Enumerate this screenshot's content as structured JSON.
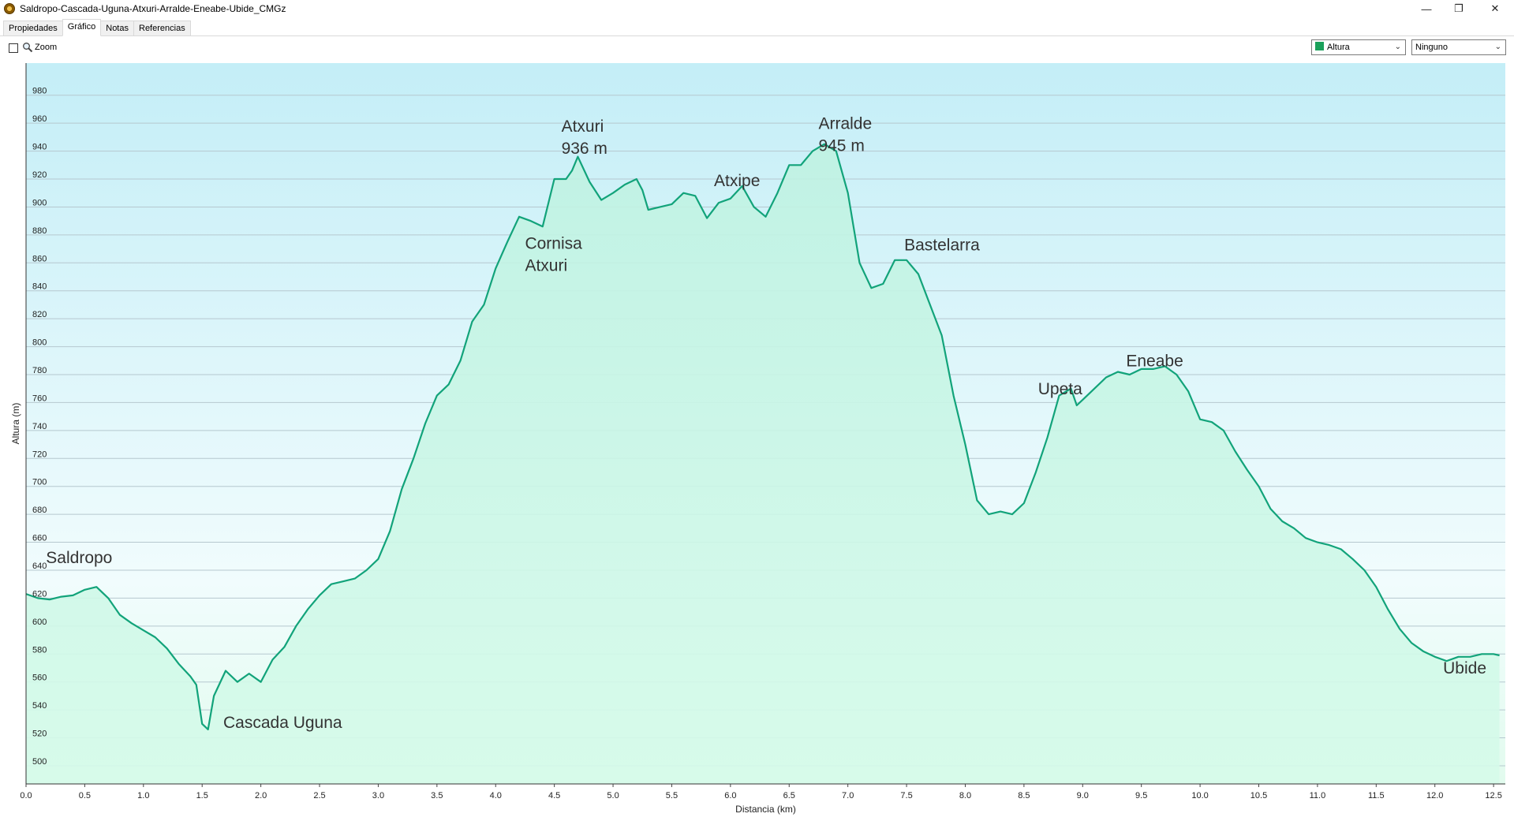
{
  "window": {
    "title": "Saldropo-Cascada-Uguna-Atxuri-Arralde-Eneabe-Ubide_CMGz",
    "minimize_glyph": "—",
    "restore_glyph": "❐",
    "close_glyph": "✕"
  },
  "tabs": [
    {
      "label": "Propiedades",
      "active": false
    },
    {
      "label": "Gráfico",
      "active": true
    },
    {
      "label": "Notas",
      "active": false
    },
    {
      "label": "Referencias",
      "active": false
    }
  ],
  "toolbar": {
    "zoom_label": "Zoom",
    "zoom_checked": false,
    "series_select": {
      "value": "Altura",
      "swatch_color": "#1aa05a"
    },
    "secondary_select": {
      "value": "Ninguno"
    }
  },
  "colors": {
    "line": "#12a37a",
    "grid": "#b6c8cf",
    "bg_top": "#c4eef7",
    "bg_bottom": "#e2fbee",
    "fill_top": "#bff2e2",
    "fill_bottom": "#d6fbea"
  },
  "chart_data": {
    "type": "area",
    "xlabel": "Distancia  (km)",
    "ylabel": "Altura (m)",
    "xlim": [
      0,
      12.6
    ],
    "ylim": [
      487,
      1003
    ],
    "x_ticks": [
      "0.0",
      "0.5",
      "1.0",
      "1.5",
      "2.0",
      "2.5",
      "3.0",
      "3.5",
      "4.0",
      "4.5",
      "5.0",
      "5.5",
      "6.0",
      "6.5",
      "7.0",
      "7.5",
      "8.0",
      "8.5",
      "9.0",
      "9.5",
      "10.0",
      "10.5",
      "11.0",
      "11.5",
      "12.0",
      "12.5"
    ],
    "y_ticks": [
      "500",
      "520",
      "540",
      "560",
      "580",
      "600",
      "620",
      "640",
      "660",
      "680",
      "700",
      "720",
      "740",
      "760",
      "780",
      "800",
      "820",
      "840",
      "860",
      "880",
      "900",
      "920",
      "940",
      "960",
      "980"
    ],
    "grid": true,
    "series": [
      {
        "x": [
          0,
          0.1,
          0.2,
          0.3,
          0.4,
          0.5,
          0.6,
          0.7,
          0.8,
          0.9,
          1.0,
          1.1,
          1.2,
          1.3,
          1.4,
          1.45,
          1.5,
          1.55,
          1.6,
          1.7,
          1.8,
          1.9,
          2.0,
          2.1,
          2.2,
          2.3,
          2.4,
          2.5,
          2.6,
          2.7,
          2.8,
          2.9,
          3.0,
          3.1,
          3.2,
          3.3,
          3.4,
          3.5,
          3.6,
          3.7,
          3.8,
          3.9,
          4.0,
          4.1,
          4.2,
          4.3,
          4.4,
          4.5,
          4.6,
          4.65,
          4.7,
          4.8,
          4.9,
          5.0,
          5.1,
          5.2,
          5.25,
          5.3,
          5.4,
          5.5,
          5.6,
          5.7,
          5.8,
          5.9,
          6.0,
          6.1,
          6.2,
          6.3,
          6.4,
          6.5,
          6.6,
          6.7,
          6.8,
          6.9,
          7.0,
          7.1,
          7.2,
          7.3,
          7.4,
          7.5,
          7.6,
          7.7,
          7.8,
          7.9,
          8.0,
          8.1,
          8.2,
          8.3,
          8.4,
          8.5,
          8.6,
          8.7,
          8.8,
          8.9,
          8.95,
          9.0,
          9.1,
          9.2,
          9.3,
          9.4,
          9.5,
          9.6,
          9.7,
          9.8,
          9.9,
          10.0,
          10.1,
          10.2,
          10.3,
          10.4,
          10.5,
          10.6,
          10.7,
          10.8,
          10.9,
          11.0,
          11.1,
          11.2,
          11.3,
          11.4,
          11.5,
          11.6,
          11.7,
          11.8,
          11.9,
          12.0,
          12.1,
          12.2,
          12.3,
          12.4,
          12.5,
          12.55
        ],
        "y": [
          623,
          620,
          619,
          621,
          622,
          626,
          628,
          620,
          608,
          602,
          597,
          592,
          584,
          573,
          564,
          558,
          530,
          526,
          550,
          568,
          560,
          566,
          560,
          576,
          585,
          600,
          612,
          622,
          630,
          632,
          634,
          640,
          648,
          668,
          698,
          720,
          745,
          765,
          773,
          790,
          818,
          830,
          856,
          875,
          893,
          890,
          886,
          920,
          920,
          926,
          936,
          918,
          905,
          910,
          916,
          920,
          912,
          898,
          900,
          902,
          910,
          908,
          892,
          903,
          906,
          915,
          900,
          893,
          910,
          930,
          930,
          940,
          945,
          940,
          910,
          860,
          842,
          845,
          862,
          862,
          852,
          830,
          808,
          765,
          730,
          690,
          680,
          682,
          680,
          688,
          710,
          735,
          765,
          770,
          758,
          762,
          770,
          778,
          782,
          780,
          784,
          784,
          786,
          780,
          768,
          748,
          746,
          740,
          725,
          712,
          700,
          684,
          675,
          670,
          663,
          660,
          658,
          655,
          648,
          640,
          628,
          612,
          598,
          588,
          582,
          578,
          575,
          578,
          578,
          580,
          580,
          579
        ]
      }
    ],
    "annotations": [
      {
        "lines": [
          "Saldropo"
        ],
        "x": 0.17,
        "y": 645
      },
      {
        "lines": [
          "Cascada Uguna"
        ],
        "x": 1.68,
        "y": 527
      },
      {
        "lines": [
          "Cornisa",
          "Atxuri"
        ],
        "x": 4.25,
        "y": 870
      },
      {
        "lines": [
          "Atxuri",
          "936 m"
        ],
        "x": 4.56,
        "y": 954
      },
      {
        "lines": [
          "Atxipe"
        ],
        "x": 5.86,
        "y": 915
      },
      {
        "lines": [
          "Arralde",
          "945 m"
        ],
        "x": 6.75,
        "y": 956
      },
      {
        "lines": [
          "Bastelarra"
        ],
        "x": 7.48,
        "y": 869
      },
      {
        "lines": [
          "Upeta"
        ],
        "x": 8.62,
        "y": 766
      },
      {
        "lines": [
          "Eneabe"
        ],
        "x": 9.37,
        "y": 786
      },
      {
        "lines": [
          "Ubide"
        ],
        "x": 12.07,
        "y": 566
      }
    ]
  }
}
